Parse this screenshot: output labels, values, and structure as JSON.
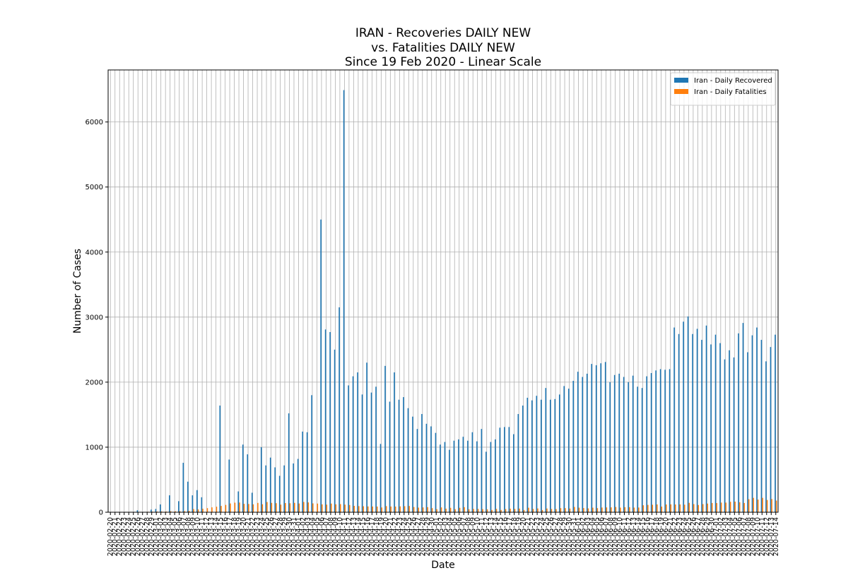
{
  "chart_data": {
    "type": "bar",
    "title": [
      "IRAN - Recoveries DAILY NEW",
      "vs. Fatalities DAILY NEW",
      "Since 19 Feb 2020 - Linear Scale"
    ],
    "x_label": "Date",
    "y_label": "Number of Cases",
    "ylim": [
      0,
      6800
    ],
    "yticks": [
      0,
      1000,
      2000,
      3000,
      4000,
      5000,
      6000
    ],
    "grid": true,
    "legend": "upper right",
    "categories": [
      "2020-02-20",
      "2020-02-21",
      "2020-02-22",
      "2020-02-23",
      "2020-02-24",
      "2020-02-25",
      "2020-02-26",
      "2020-02-27",
      "2020-02-28",
      "2020-02-29",
      "2020-03-01",
      "2020-03-02",
      "2020-03-03",
      "2020-03-04",
      "2020-03-05",
      "2020-03-06",
      "2020-03-07",
      "2020-03-08",
      "2020-03-09",
      "2020-03-10",
      "2020-03-11",
      "2020-03-12",
      "2020-03-13",
      "2020-03-14",
      "2020-03-15",
      "2020-03-16",
      "2020-03-17",
      "2020-03-18",
      "2020-03-19",
      "2020-03-20",
      "2020-03-21",
      "2020-03-22",
      "2020-03-23",
      "2020-03-24",
      "2020-03-25",
      "2020-03-26",
      "2020-03-27",
      "2020-03-28",
      "2020-03-29",
      "2020-03-30",
      "2020-03-31",
      "2020-04-01",
      "2020-04-02",
      "2020-04-03",
      "2020-04-04",
      "2020-04-05",
      "2020-04-06",
      "2020-04-07",
      "2020-04-08",
      "2020-04-09",
      "2020-04-10",
      "2020-04-11",
      "2020-04-12",
      "2020-04-13",
      "2020-04-14",
      "2020-04-15",
      "2020-04-16",
      "2020-04-17",
      "2020-04-18",
      "2020-04-19",
      "2020-04-20",
      "2020-04-21",
      "2020-04-22",
      "2020-04-23",
      "2020-04-24",
      "2020-04-25",
      "2020-04-26",
      "2020-04-27",
      "2020-04-28",
      "2020-04-29",
      "2020-04-30",
      "2020-05-01",
      "2020-05-02",
      "2020-05-03",
      "2020-05-04",
      "2020-05-05",
      "2020-05-06",
      "2020-05-07",
      "2020-05-08",
      "2020-05-09",
      "2020-05-10",
      "2020-05-11",
      "2020-05-12",
      "2020-05-13",
      "2020-05-14",
      "2020-05-15",
      "2020-05-16",
      "2020-05-17",
      "2020-05-18",
      "2020-05-19",
      "2020-05-20",
      "2020-05-21",
      "2020-05-22",
      "2020-05-23",
      "2020-05-24",
      "2020-05-25",
      "2020-05-26",
      "2020-05-27",
      "2020-05-28",
      "2020-05-29",
      "2020-05-30",
      "2020-05-31",
      "2020-06-01",
      "2020-06-02",
      "2020-06-03",
      "2020-06-04",
      "2020-06-05",
      "2020-06-06",
      "2020-06-07",
      "2020-06-08",
      "2020-06-09",
      "2020-06-10",
      "2020-06-11",
      "2020-06-12",
      "2020-06-13",
      "2020-06-14",
      "2020-06-15",
      "2020-06-16",
      "2020-06-17",
      "2020-06-18",
      "2020-06-19",
      "2020-06-20",
      "2020-06-21",
      "2020-06-22",
      "2020-06-23",
      "2020-06-24",
      "2020-06-25",
      "2020-06-26",
      "2020-06-27",
      "2020-06-28",
      "2020-06-29",
      "2020-06-30",
      "2020-07-01",
      "2020-07-02",
      "2020-07-03",
      "2020-07-04",
      "2020-07-05",
      "2020-07-06",
      "2020-07-07",
      "2020-07-08",
      "2020-07-09",
      "2020-07-10",
      "2020-07-11",
      "2020-07-12",
      "2020-07-13",
      "2020-07-14"
    ],
    "series": [
      {
        "name": "Iran - Daily Recovered",
        "color": "#1f77b4",
        "values": [
          0,
          0,
          0,
          0,
          0,
          0,
          30,
          0,
          0,
          40,
          50,
          120,
          0,
          260,
          0,
          170,
          760,
          470,
          260,
          340,
          230,
          0,
          0,
          0,
          1640,
          0,
          810,
          0,
          320,
          1040,
          890,
          300,
          0,
          1000,
          720,
          840,
          690,
          560,
          720,
          1520,
          750,
          820,
          1240,
          1230,
          1800,
          0,
          4500,
          2810,
          2770,
          2500,
          3150,
          6490,
          1950,
          2090,
          2150,
          1810,
          2300,
          1840,
          1930,
          1050,
          2250,
          1700,
          2150,
          1730,
          1770,
          1600,
          1470,
          1280,
          1510,
          1360,
          1320,
          1220,
          1040,
          1080,
          960,
          1100,
          1120,
          1160,
          1100,
          1230,
          1090,
          1280,
          930,
          1080,
          1120,
          1300,
          1310,
          1310,
          1200,
          1510,
          1640,
          1760,
          1720,
          1790,
          1730,
          1910,
          1730,
          1740,
          1810,
          1940,
          1900,
          2020,
          2160,
          2080,
          2130,
          2280,
          2260,
          2290,
          2310,
          2000,
          2110,
          2130,
          2080,
          2000,
          2100,
          1930,
          1910,
          2090,
          2140,
          2180,
          2200,
          2190,
          2200,
          2840,
          2740,
          2930,
          3010,
          2740,
          2820,
          2650,
          2870,
          2580,
          2730,
          2600,
          2350,
          2490,
          2380,
          2750,
          2910,
          2460,
          2720,
          2840,
          2650,
          2320,
          2540,
          2730
        ]
      },
      {
        "name": "Iran - Daily Fatalities",
        "color": "#ff7f0e",
        "values": [
          0,
          0,
          2,
          0,
          4,
          4,
          3,
          4,
          7,
          9,
          11,
          12,
          11,
          15,
          15,
          16,
          17,
          21,
          49,
          43,
          54,
          63,
          75,
          85,
          97,
          113,
          135,
          147,
          149,
          129,
          127,
          122,
          143,
          123,
          157,
          144,
          139,
          117,
          141,
          138,
          144,
          134,
          158,
          151,
          136,
          133,
          121,
          117,
          133,
          122,
          125,
          117,
          111,
          98,
          94,
          92,
          89,
          88,
          87,
          73,
          94,
          88,
          87,
          90,
          93,
          96,
          80,
          71,
          74,
          78,
          63,
          47,
          74,
          55,
          68,
          47,
          68,
          78,
          45,
          51,
          50,
          48,
          45,
          35,
          51,
          35,
          49,
          55,
          51,
          56,
          34,
          69,
          51,
          58,
          34,
          57,
          50,
          48,
          63,
          63,
          57,
          81,
          70,
          64,
          59,
          70,
          63,
          72,
          74,
          75,
          81,
          71,
          78,
          78,
          71,
          72,
          107,
          113,
          115,
          120,
          87,
          119,
          121,
          119,
          120,
          116,
          144,
          125,
          111,
          125,
          133,
          142,
          141,
          148,
          148,
          160,
          163,
          153,
          142,
          200,
          221,
          194,
          221,
          188,
          203,
          179
        ]
      }
    ]
  }
}
